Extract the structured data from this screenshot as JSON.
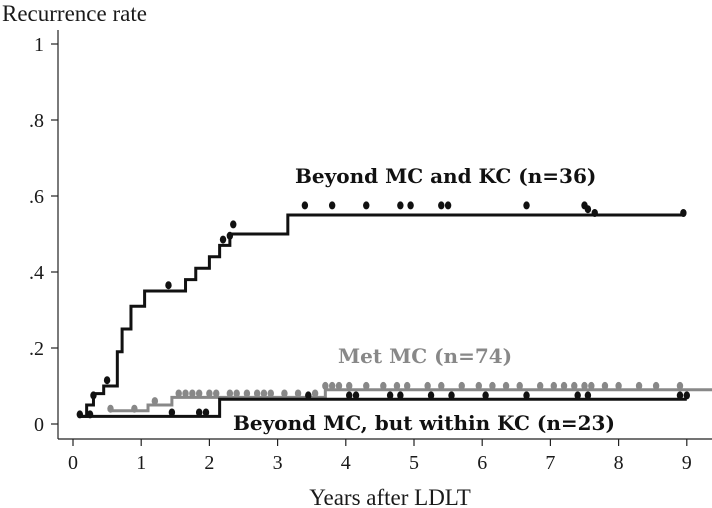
{
  "chart_data": {
    "type": "line",
    "step": true,
    "ylabel": "Recurrence rate",
    "xlabel": "Years after LDLT",
    "xlim": [
      0,
      9.5
    ],
    "ylim": [
      0,
      1
    ],
    "xticks": [
      "0",
      "1",
      "2",
      "3",
      "4",
      "5",
      "6",
      "7",
      "8",
      "9"
    ],
    "yticks": [
      "0",
      ".2",
      ".4",
      ".6",
      ".8",
      "1"
    ],
    "grid": false,
    "legend": "inline labels",
    "series": [
      {
        "name": "Beyond MC and KC (n=36)",
        "color": "#111111",
        "steps": [
          [
            0.1,
            0.02
          ],
          [
            0.2,
            0.05
          ],
          [
            0.3,
            0.08
          ],
          [
            0.45,
            0.1
          ],
          [
            0.65,
            0.19
          ],
          [
            0.72,
            0.25
          ],
          [
            0.85,
            0.31
          ],
          [
            1.05,
            0.35
          ],
          [
            1.65,
            0.38
          ],
          [
            1.8,
            0.41
          ],
          [
            2.0,
            0.44
          ],
          [
            2.15,
            0.47
          ],
          [
            2.3,
            0.5
          ],
          [
            3.15,
            0.55
          ],
          [
            8.95,
            0.55
          ]
        ],
        "censored": [
          [
            0.1,
            0.02
          ],
          [
            0.3,
            0.07
          ],
          [
            0.5,
            0.11
          ],
          [
            1.4,
            0.36
          ],
          [
            2.2,
            0.48
          ],
          [
            2.3,
            0.49
          ],
          [
            2.35,
            0.52
          ],
          [
            3.4,
            0.57
          ],
          [
            3.8,
            0.57
          ],
          [
            4.3,
            0.57
          ],
          [
            4.8,
            0.57
          ],
          [
            4.95,
            0.57
          ],
          [
            5.4,
            0.57
          ],
          [
            5.5,
            0.57
          ],
          [
            6.65,
            0.57
          ],
          [
            7.5,
            0.57
          ],
          [
            7.55,
            0.56
          ],
          [
            7.65,
            0.55
          ],
          [
            8.95,
            0.55
          ]
        ]
      },
      {
        "name": "Met MC (n=74)",
        "color": "#888888",
        "steps": [
          [
            0.55,
            0.035
          ],
          [
            1.1,
            0.05
          ],
          [
            1.45,
            0.07
          ],
          [
            3.7,
            0.09
          ],
          [
            9.5,
            0.09
          ]
        ],
        "censored": [
          [
            0.55,
            0.035
          ],
          [
            0.9,
            0.035
          ],
          [
            1.2,
            0.055
          ],
          [
            1.55,
            0.075
          ],
          [
            1.65,
            0.075
          ],
          [
            1.75,
            0.075
          ],
          [
            1.85,
            0.075
          ],
          [
            2.0,
            0.075
          ],
          [
            2.1,
            0.075
          ],
          [
            2.3,
            0.075
          ],
          [
            2.4,
            0.075
          ],
          [
            2.55,
            0.075
          ],
          [
            2.7,
            0.075
          ],
          [
            2.8,
            0.075
          ],
          [
            2.9,
            0.075
          ],
          [
            3.1,
            0.075
          ],
          [
            3.3,
            0.075
          ],
          [
            3.55,
            0.075
          ],
          [
            3.7,
            0.095
          ],
          [
            3.8,
            0.095
          ],
          [
            3.9,
            0.095
          ],
          [
            4.05,
            0.095
          ],
          [
            4.3,
            0.095
          ],
          [
            4.55,
            0.095
          ],
          [
            4.75,
            0.095
          ],
          [
            4.9,
            0.095
          ],
          [
            5.2,
            0.095
          ],
          [
            5.4,
            0.095
          ],
          [
            5.7,
            0.095
          ],
          [
            5.95,
            0.095
          ],
          [
            6.15,
            0.095
          ],
          [
            6.35,
            0.095
          ],
          [
            6.55,
            0.095
          ],
          [
            6.85,
            0.095
          ],
          [
            7.05,
            0.095
          ],
          [
            7.2,
            0.095
          ],
          [
            7.35,
            0.095
          ],
          [
            7.5,
            0.095
          ],
          [
            7.6,
            0.095
          ],
          [
            7.8,
            0.095
          ],
          [
            8.0,
            0.095
          ],
          [
            8.3,
            0.095
          ],
          [
            8.55,
            0.095
          ],
          [
            8.9,
            0.095
          ],
          [
            9.45,
            0.095
          ]
        ]
      },
      {
        "name": "Beyond MC, but within KC (n=23)",
        "color": "#111111",
        "steps": [
          [
            0.1,
            0.02
          ],
          [
            2.15,
            0.065
          ],
          [
            9.0,
            0.065
          ]
        ],
        "censored": [
          [
            0.25,
            0.02
          ],
          [
            1.45,
            0.025
          ],
          [
            1.85,
            0.025
          ],
          [
            1.95,
            0.025
          ],
          [
            3.45,
            0.07
          ],
          [
            4.05,
            0.07
          ],
          [
            4.15,
            0.07
          ],
          [
            4.65,
            0.07
          ],
          [
            4.8,
            0.07
          ],
          [
            5.25,
            0.07
          ],
          [
            5.55,
            0.07
          ],
          [
            6.05,
            0.07
          ],
          [
            6.65,
            0.07
          ],
          [
            7.4,
            0.07
          ],
          [
            7.55,
            0.07
          ],
          [
            8.9,
            0.07
          ],
          [
            9.0,
            0.07
          ]
        ]
      }
    ]
  }
}
